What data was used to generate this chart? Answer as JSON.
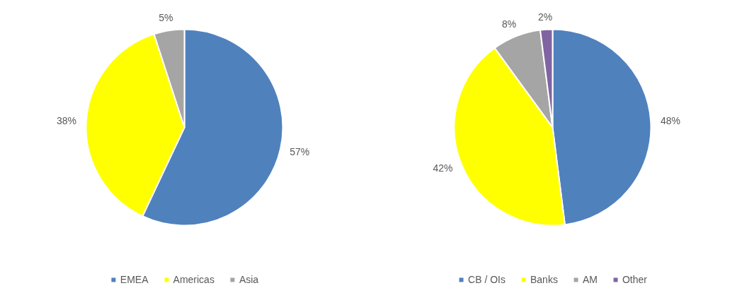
{
  "chart_data": [
    {
      "type": "pie",
      "categories": [
        "EMEA",
        "Americas",
        "Asia"
      ],
      "values": [
        57,
        38,
        5
      ],
      "colors": [
        "#4f81bd",
        "#ffff00",
        "#a5a5a5"
      ],
      "value_labels": [
        "57%",
        "38%",
        "5%"
      ],
      "data_labels": true,
      "legend": "bottom"
    },
    {
      "type": "pie",
      "categories": [
        "CB / OIs",
        "Banks",
        "AM",
        "Other"
      ],
      "values": [
        48,
        42,
        8,
        2
      ],
      "colors": [
        "#4f81bd",
        "#ffff00",
        "#a5a5a5",
        "#8064a2"
      ],
      "value_labels": [
        "48%",
        "42%",
        "8%",
        "2%"
      ],
      "data_labels": true,
      "legend": "bottom"
    }
  ]
}
